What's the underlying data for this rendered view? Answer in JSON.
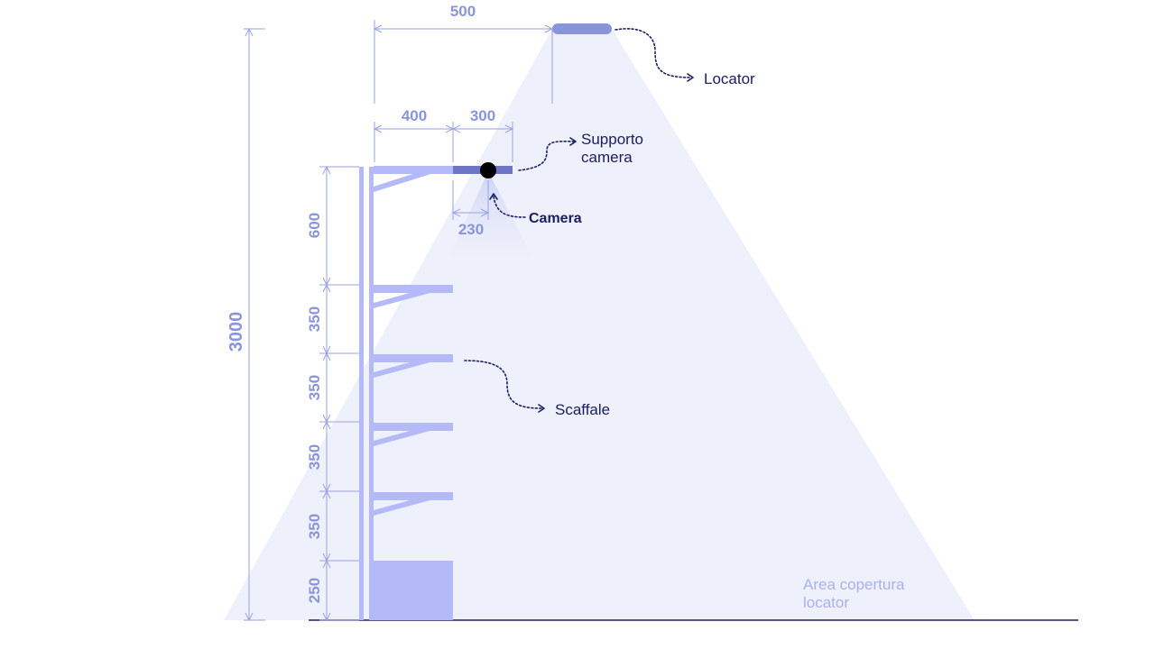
{
  "colors": {
    "coverage": "#eef0fb",
    "shelf": "#b3baf7",
    "dimension_line": "#9aa2df",
    "dimension_text": "#8a94d8",
    "locator": "#8a94d8",
    "camera_support": "#6d76c4",
    "camera": "#000000",
    "label": "#1a2060",
    "area_label": "#aab2ec",
    "ground": "#1a2060"
  },
  "dimensions": {
    "total_height": "3000",
    "locator_offset": "500",
    "shelf_depth": "400",
    "support_length": "300",
    "camera_offset": "230",
    "level_gaps": [
      "600",
      "350",
      "350",
      "350",
      "350",
      "250"
    ]
  },
  "labels": {
    "locator": "Locator",
    "camera_support_line1": "Supporto",
    "camera_support_line2": "camera",
    "camera": "Camera",
    "shelf": "Scaffale",
    "area_line1": "Area copertura",
    "area_line2": "locator"
  }
}
